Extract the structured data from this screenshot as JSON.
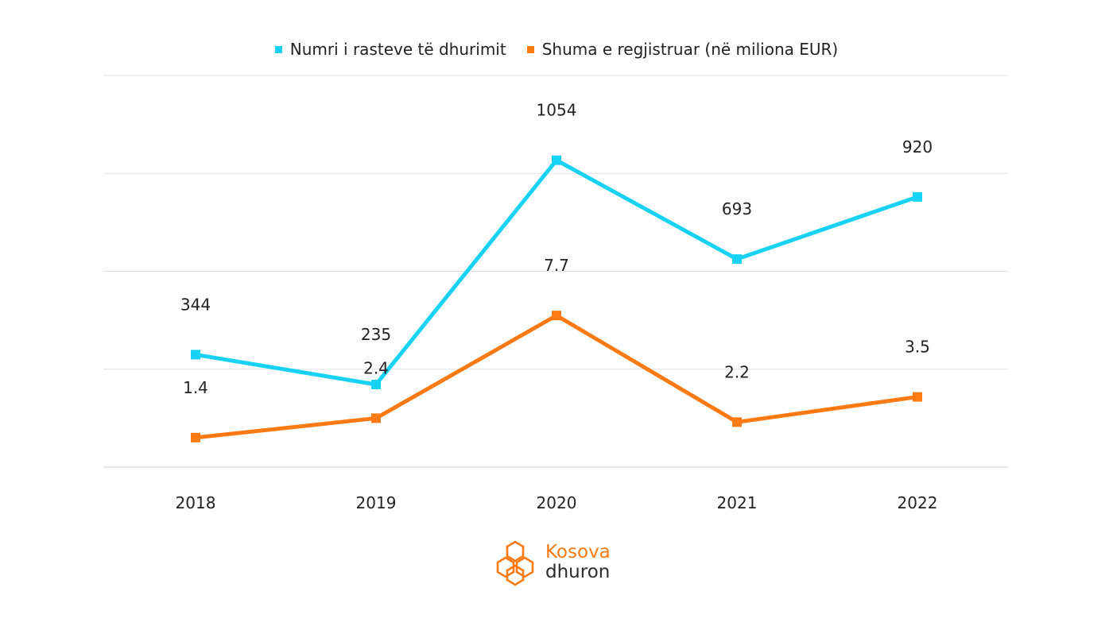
{
  "chart_data": {
    "type": "line",
    "categories": [
      "2018",
      "2019",
      "2020",
      "2021",
      "2022"
    ],
    "series": [
      {
        "name": "Numri i rasteve të dhurimit",
        "values": [
          344,
          235,
          1054,
          693,
          920
        ],
        "labels": [
          "344",
          "235",
          "1054",
          "693",
          "920"
        ],
        "color": "#17d2f5"
      },
      {
        "name": "Shuma e regjistruar (në miliona EUR)",
        "values": [
          1.4,
          2.4,
          7.7,
          2.2,
          3.5
        ],
        "labels": [
          "1.4",
          "2.4",
          "7.7",
          "2.2",
          "3.5"
        ],
        "color": "#ff7a12"
      }
    ],
    "grid": true,
    "legend": "top-center",
    "y_axis_labels": false
  },
  "logo": {
    "line1": "Kosova",
    "line2": "dhuron",
    "color": "#ff7a12"
  }
}
